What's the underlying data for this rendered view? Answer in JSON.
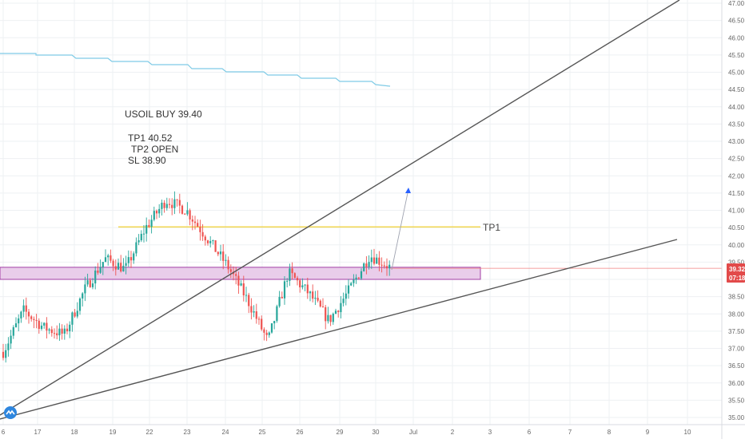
{
  "colors": {
    "background": "#ffffff",
    "grid": "#eef0f3",
    "axis_text": "#666666",
    "up_candle": "#26a69a",
    "down_candle": "#ef5350",
    "trendline": "#555555",
    "tp_line": "#f0d030",
    "zone_fill": "#e9cdea",
    "zone_border": "#a23fa6",
    "ma_line": "#7fcbe6",
    "price_line": "#f08080",
    "price_tag": "#e24a4a",
    "arrow": "#9fa3b0",
    "arrow_head": "#2962ff",
    "logo": "#2e86de"
  },
  "annotations": {
    "line1": "USOIL BUY 39.40",
    "line2": "TP1 40.52",
    "line3": "TP2 OPEN",
    "line4": "SL 38.90",
    "tp1_label": "TP1"
  },
  "price_tag": {
    "price": "39.32",
    "countdown": "07:18"
  },
  "logo_icon": "tradingview-logo-icon",
  "chart_data": {
    "type": "candlestick",
    "title": "",
    "xlabel": "",
    "ylabel": "",
    "ylim": [
      34.75,
      47.0
    ],
    "grid": true,
    "y_ticks": [
      "35.00",
      "35.50",
      "36.00",
      "36.50",
      "37.00",
      "37.50",
      "38.00",
      "38.50",
      "39.00",
      "39.50",
      "40.00",
      "40.50",
      "41.00",
      "41.50",
      "42.00",
      "42.50",
      "43.00",
      "43.50",
      "44.00",
      "44.50",
      "45.00",
      "45.50",
      "46.00",
      "46.50",
      "47.00"
    ],
    "x_ticks": [
      "6",
      "17",
      "18",
      "19",
      "22",
      "23",
      "24",
      "25",
      "26",
      "29",
      "30",
      "Jul",
      "2",
      "3",
      "6",
      "7",
      "8",
      "9",
      "10"
    ],
    "key_levels": {
      "entry": 39.4,
      "tp1": 40.52,
      "sl": 38.9,
      "last_price": 39.32,
      "zone": [
        39.0,
        39.35
      ]
    },
    "price_path": [
      [
        "6",
        36.9
      ],
      [
        "17",
        38.1
      ],
      [
        "17",
        37.6
      ],
      [
        "18",
        37.4
      ],
      [
        "19",
        38.7
      ],
      [
        "19",
        39.6
      ],
      [
        "22",
        39.3
      ],
      [
        "22",
        40.5
      ],
      [
        "23",
        41.3
      ],
      [
        "23",
        41.0
      ],
      [
        "24",
        40.2
      ],
      [
        "24",
        39.4
      ],
      [
        "25",
        38.4
      ],
      [
        "25",
        37.2
      ],
      [
        "26",
        39.2
      ],
      [
        "26",
        38.6
      ],
      [
        "29",
        37.8
      ],
      [
        "29",
        38.7
      ],
      [
        "30",
        39.7
      ],
      [
        "30",
        39.35
      ]
    ]
  }
}
